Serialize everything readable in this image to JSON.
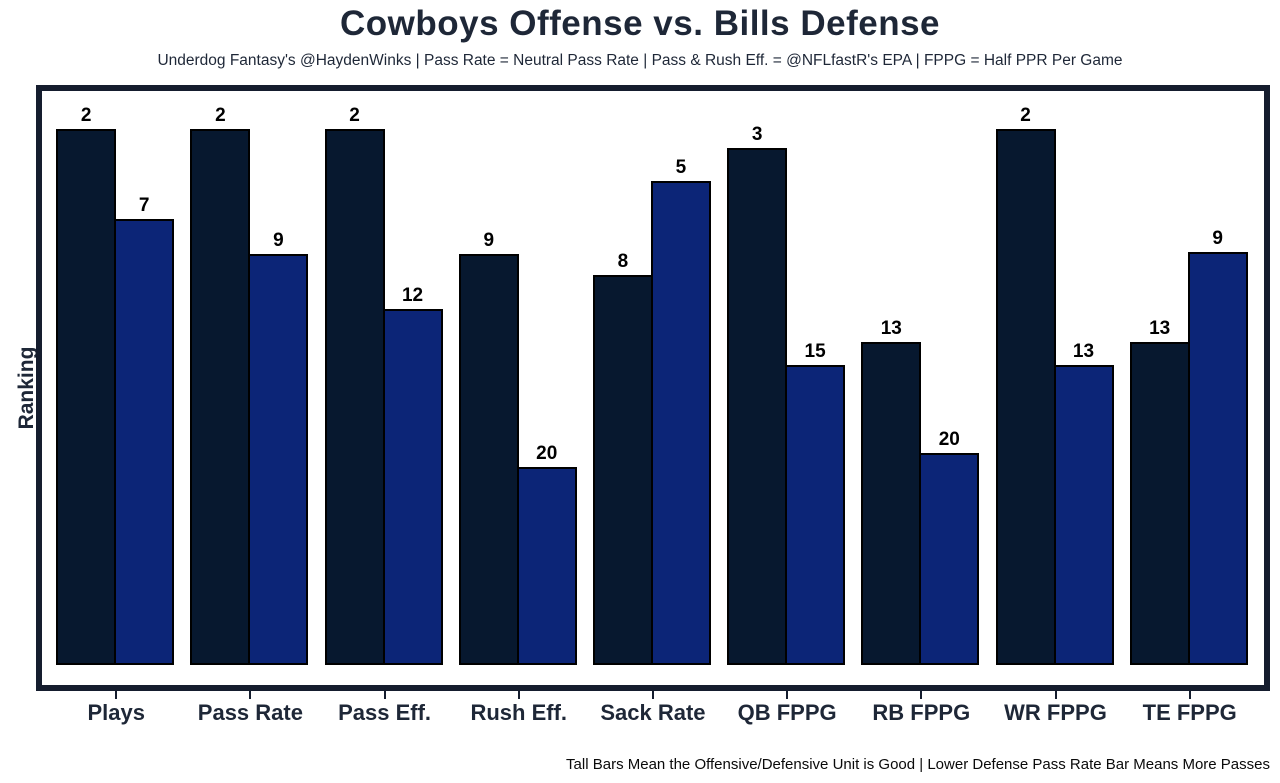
{
  "header": {
    "title": "Cowboys Offense vs. Bills Defense",
    "subtitle": "Underdog Fantasy's @HaydenWinks | Pass Rate = Neutral Pass Rate | Pass & Rush Eff. = @NFLfastR's EPA | FPPG = Half PPR Per Game"
  },
  "footer": {
    "note": "Tall Bars Mean the Offensive/Defensive Unit is Good | Lower Defense Pass Rate Bar Means More Passes"
  },
  "chart_data": {
    "type": "bar",
    "title": "Cowboys Offense vs. Bills Defense",
    "subtitle": "Underdog Fantasy's @HaydenWinks | Pass Rate = Neutral Pass Rate | Pass & Rush Eff. = @NFLfastR's EPA | FPPG = Half PPR Per Game",
    "xlabel": "",
    "ylabel": "Ranking",
    "grid": false,
    "legend_position": "none",
    "y_axis_ticks": "none",
    "value_labels": "team ranking shown above each bar (lower rank = taller bar = better unit)",
    "axis_color": "#151d2e",
    "categories": [
      "Plays",
      "Pass Rate",
      "Pass Eff.",
      "Rush Eff.",
      "Sack Rate",
      "QB FPPG",
      "RB FPPG",
      "WR FPPG",
      "TE FPPG"
    ],
    "series": [
      {
        "name": "Cowboys Offense",
        "color": "#07182f",
        "edge_color": "#000000",
        "ranks": [
          2,
          2,
          2,
          9,
          8,
          3,
          13,
          2,
          13
        ],
        "height_frac": [
          0.937,
          0.937,
          0.937,
          0.719,
          0.682,
          0.904,
          0.565,
          0.937,
          0.565
        ]
      },
      {
        "name": "Bills Defense",
        "color": "#0c2577",
        "edge_color": "#000000",
        "ranks": [
          7,
          9,
          12,
          20,
          5,
          15,
          20,
          13,
          9
        ],
        "height_frac": [
          0.78,
          0.719,
          0.622,
          0.346,
          0.846,
          0.524,
          0.371,
          0.524,
          0.722
        ]
      }
    ],
    "footnote": "Tall Bars Mean the Offensive/Defensive Unit is Good | Lower Defense Pass Rate Bar Means More Passes"
  }
}
